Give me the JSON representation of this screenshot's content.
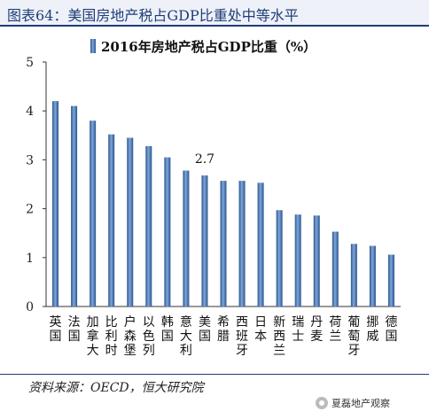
{
  "header": {
    "title": "图表64：美国房地产税占GDP比重处中等水平"
  },
  "chart_data": {
    "type": "bar",
    "legend": "2016年房地产税占GDP比重（%）",
    "legend_placement": "top-center",
    "grid": false,
    "ylim": [
      0,
      5
    ],
    "yticks": [
      "0",
      "1",
      "2",
      "3",
      "4",
      "5"
    ],
    "categories": [
      "英国",
      "法国",
      "加拿大",
      "比利时",
      "户森堡",
      "以色列",
      "韩国",
      "意大利",
      "美国",
      "希腊",
      "西班牙",
      "日本",
      "新西兰",
      "瑞士",
      "丹麦",
      "荷兰",
      "葡萄牙",
      "挪威",
      "德国"
    ],
    "values": [
      4.2,
      4.1,
      3.8,
      3.52,
      3.45,
      3.28,
      3.05,
      2.78,
      2.68,
      2.57,
      2.57,
      2.53,
      1.97,
      1.88,
      1.86,
      1.53,
      1.28,
      1.24,
      1.06
    ],
    "annotation": {
      "text": "2.7",
      "category": "美国"
    },
    "bar_color": "#3c6fb0"
  },
  "footer": {
    "source": "资料来源：OECD，恒大研究院",
    "watermark": "夏磊地产观察"
  }
}
